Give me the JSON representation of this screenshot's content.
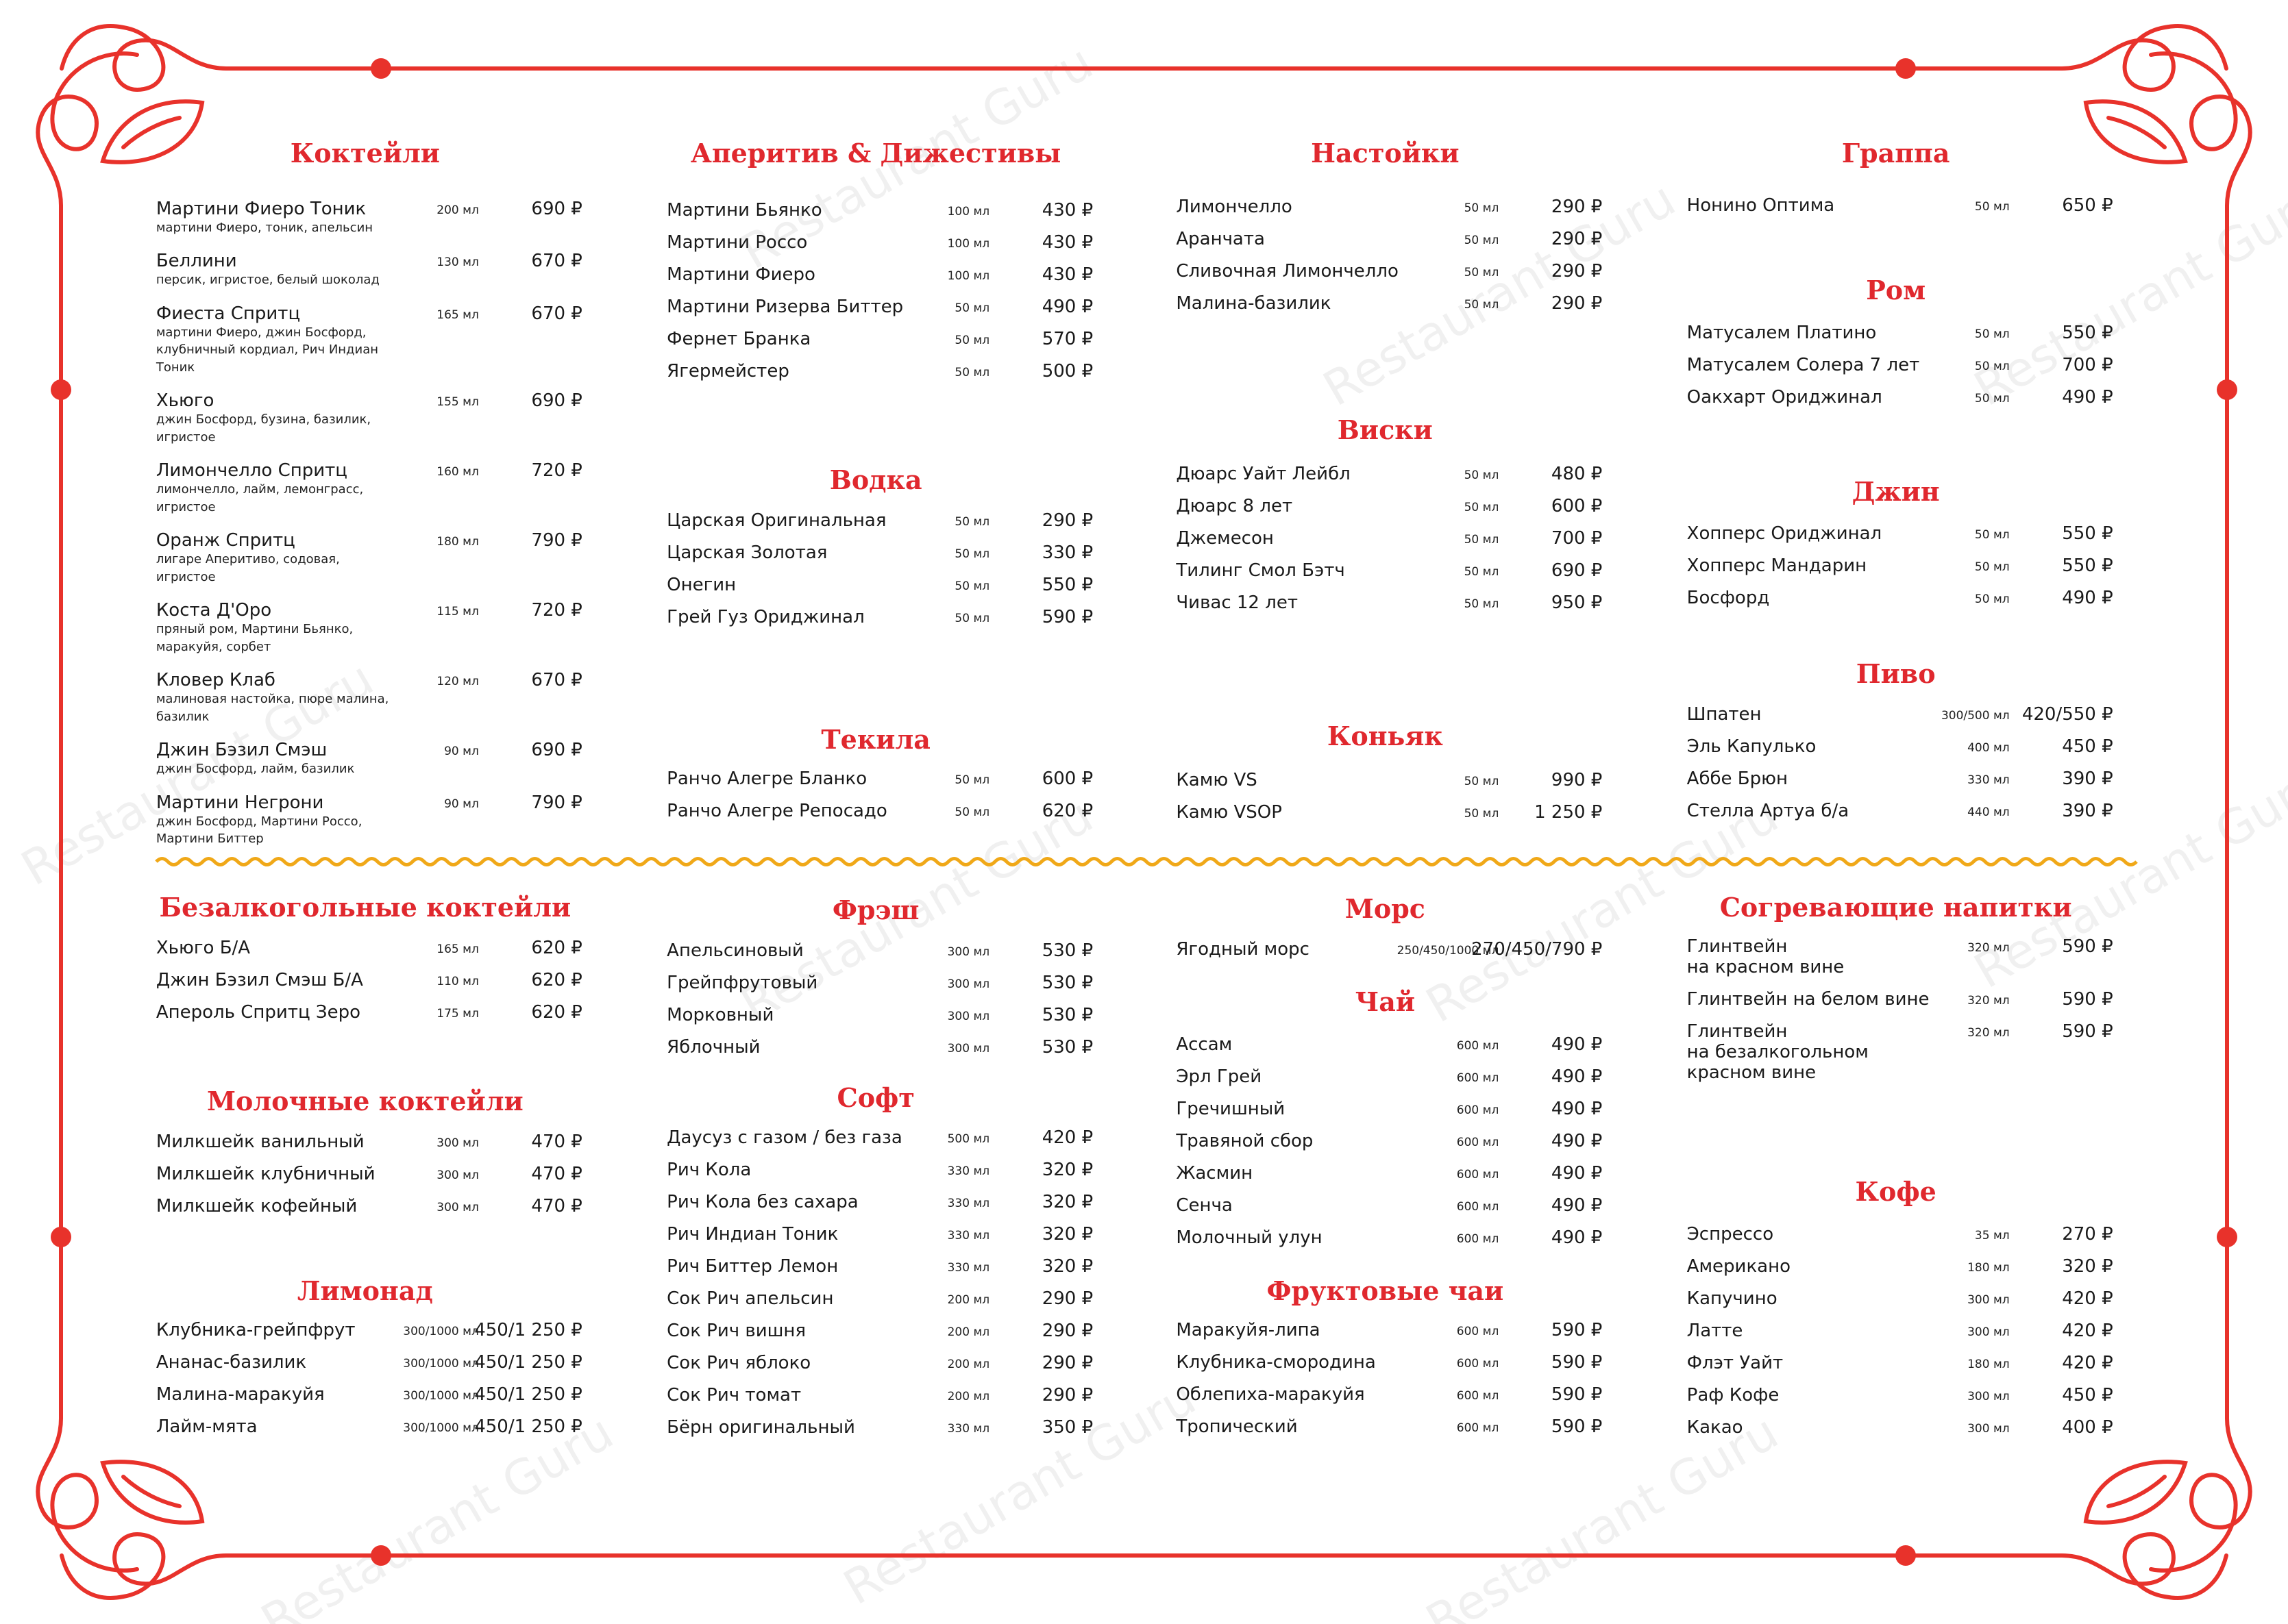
{
  "watermark": "Restaurant Guru",
  "sections": [
    {
      "title": "Коктейли",
      "items": [
        {
          "name": "Мартини Фиеро Тоник",
          "description": "мартини Фиеро, тоник, апельсин",
          "volume": "200 мл",
          "price": "690 ₽"
        },
        {
          "name": "Беллини",
          "description": "персик, игристое, белый шоколад",
          "volume": "130 мл",
          "price": "670 ₽"
        },
        {
          "name": "Фиеста Спритц",
          "description": "мартини Фиеро, джин Босфорд, клубничный кордиал, Рич Индиан Тоник",
          "volume": "165 мл",
          "price": "670 ₽"
        },
        {
          "name": "Хьюго",
          "description": "джин Босфорд, бузина, базилик, игристое",
          "volume": "155 мл",
          "price": "690 ₽"
        },
        {
          "name": "Лимончелло Спритц",
          "description": "лимончелло, лайм, лемонграсс, игристое",
          "volume": "160 мл",
          "price": "720 ₽"
        },
        {
          "name": "Оранж Спритц",
          "description": "лигаре Аперитиво, содовая, игристое",
          "volume": "180 мл",
          "price": "790 ₽"
        },
        {
          "name": "Коста Д'Оро",
          "description": "пряный ром, Мартини Бьянко, маракуйя, сорбет",
          "volume": "115 мл",
          "price": "720 ₽"
        },
        {
          "name": "Кловер Клаб",
          "description": "малиновая настойка, пюре малина, базилик",
          "volume": "120 мл",
          "price": "670 ₽"
        },
        {
          "name": "Джин Бэзил Смэш",
          "description": "джин Босфорд, лайм, базилик",
          "volume": "90 мл",
          "price": "690 ₽"
        },
        {
          "name": "Мартини Негрони",
          "description": "джин Босфорд, Мартини Россо, Мартини Биттер",
          "volume": "90 мл",
          "price": "790 ₽"
        }
      ]
    },
    {
      "title": "Аперитив & Дижестивы",
      "items": [
        {
          "name": "Мартини Бьянко",
          "volume": "100 мл",
          "price": "430 ₽"
        },
        {
          "name": "Мартини Россо",
          "volume": "100 мл",
          "price": "430 ₽"
        },
        {
          "name": "Мартини Фиеро",
          "volume": "100 мл",
          "price": "430 ₽"
        },
        {
          "name": "Мартини Ризерва Биттер",
          "volume": "50 мл",
          "price": "490 ₽"
        },
        {
          "name": "Фернет Бранка",
          "volume": "50 мл",
          "price": "570 ₽"
        },
        {
          "name": "Ягермейстер",
          "volume": "50 мл",
          "price": "500 ₽"
        }
      ]
    },
    {
      "title": "Водка",
      "items": [
        {
          "name": "Царская Оригинальная",
          "volume": "50 мл",
          "price": "290 ₽"
        },
        {
          "name": "Царская Золотая",
          "volume": "50 мл",
          "price": "330 ₽"
        },
        {
          "name": "Онегин",
          "volume": "50 мл",
          "price": "550 ₽"
        },
        {
          "name": "Грей Гуз Ориджинал",
          "volume": "50 мл",
          "price": "590 ₽"
        }
      ]
    },
    {
      "title": "Текила",
      "items": [
        {
          "name": "Ранчо Алегре Бланко",
          "volume": "50 мл",
          "price": "600 ₽"
        },
        {
          "name": "Ранчо Алегре Репосадо",
          "volume": "50 мл",
          "price": "620 ₽"
        }
      ]
    },
    {
      "title": "Настойки",
      "items": [
        {
          "name": "Лимончелло",
          "volume": "50 мл",
          "price": "290 ₽"
        },
        {
          "name": "Аранчата",
          "volume": "50 мл",
          "price": "290 ₽"
        },
        {
          "name": "Сливочная Лимончелло",
          "volume": "50 мл",
          "price": "290 ₽"
        },
        {
          "name": "Малина-базилик",
          "volume": "50 мл",
          "price": "290 ₽"
        }
      ]
    },
    {
      "title": "Виски",
      "items": [
        {
          "name": "Дюарс Уайт Лейбл",
          "volume": "50 мл",
          "price": "480 ₽"
        },
        {
          "name": "Дюарс 8 лет",
          "volume": "50 мл",
          "price": "600 ₽"
        },
        {
          "name": "Джемесон",
          "volume": "50 мл",
          "price": "700 ₽"
        },
        {
          "name": "Тилинг Смол Бэтч",
          "volume": "50 мл",
          "price": "690 ₽"
        },
        {
          "name": "Чивас 12 лет",
          "volume": "50 мл",
          "price": "950 ₽"
        }
      ]
    },
    {
      "title": "Коньяк",
      "items": [
        {
          "name": "Камю VS",
          "volume": "50 мл",
          "price": "990 ₽"
        },
        {
          "name": "Камю VSOP",
          "volume": "50 мл",
          "price": "1 250 ₽"
        }
      ]
    },
    {
      "title": "Граппа",
      "items": [
        {
          "name": "Нонино Оптима",
          "volume": "50 мл",
          "price": "650 ₽"
        }
      ]
    },
    {
      "title": "Ром",
      "items": [
        {
          "name": "Матусалем Платино",
          "volume": "50 мл",
          "price": "550 ₽"
        },
        {
          "name": "Матусалем Солера 7 лет",
          "volume": "50 мл",
          "price": "700 ₽"
        },
        {
          "name": "Оакхарт Ориджинал",
          "volume": "50 мл",
          "price": "490 ₽"
        }
      ]
    },
    {
      "title": "Джин",
      "items": [
        {
          "name": "Хопперс Ориджинал",
          "volume": "50 мл",
          "price": "550 ₽"
        },
        {
          "name": "Хопперс Мандарин",
          "volume": "50 мл",
          "price": "550 ₽"
        },
        {
          "name": "Босфорд",
          "volume": "50 мл",
          "price": "490 ₽"
        }
      ]
    },
    {
      "title": "Пиво",
      "items": [
        {
          "name": "Шпатен",
          "volume": "300/500 мл",
          "price": "420/550 ₽"
        },
        {
          "name": "Эль Капулько",
          "volume": "400 мл",
          "price": "450 ₽"
        },
        {
          "name": "Аббе Брюн",
          "volume": "330 мл",
          "price": "390 ₽"
        },
        {
          "name": "Стелла Артуа б/а",
          "volume": "440 мл",
          "price": "390 ₽"
        }
      ]
    },
    {
      "title": "Безалкогольные коктейли",
      "items": [
        {
          "name": "Хьюго Б/А",
          "volume": "165 мл",
          "price": "620 ₽"
        },
        {
          "name": "Джин Бэзил Смэш Б/А",
          "volume": "110 мл",
          "price": "620 ₽"
        },
        {
          "name": "Апероль Спритц Зеро",
          "volume": "175 мл",
          "price": "620 ₽"
        }
      ]
    },
    {
      "title": "Молочные коктейли",
      "items": [
        {
          "name": "Милкшейк ванильный",
          "volume": "300 мл",
          "price": "470 ₽"
        },
        {
          "name": "Милкшейк клубничный",
          "volume": "300 мл",
          "price": "470 ₽"
        },
        {
          "name": "Милкшейк кофейный",
          "volume": "300 мл",
          "price": "470 ₽"
        }
      ]
    },
    {
      "title": "Лимонад",
      "items": [
        {
          "name": "Клубника-грейпфрут",
          "volume": "300/1000 мл",
          "price": "450/1 250 ₽"
        },
        {
          "name": "Ананас-базилик",
          "volume": "300/1000 мл",
          "price": "450/1 250 ₽"
        },
        {
          "name": "Малина-маракуйя",
          "volume": "300/1000 мл",
          "price": "450/1 250 ₽"
        },
        {
          "name": "Лайм-мята",
          "volume": "300/1000 мл",
          "price": "450/1 250 ₽"
        }
      ]
    },
    {
      "title": "Фрэш",
      "items": [
        {
          "name": "Апельсиновый",
          "volume": "300 мл",
          "price": "530 ₽"
        },
        {
          "name": "Грейпфрутовый",
          "volume": "300 мл",
          "price": "530 ₽"
        },
        {
          "name": "Морковный",
          "volume": "300 мл",
          "price": "530 ₽"
        },
        {
          "name": "Яблочный",
          "volume": "300 мл",
          "price": "530 ₽"
        }
      ]
    },
    {
      "title": "Софт",
      "items": [
        {
          "name": "Даусуз с газом / без газа",
          "volume": "500 мл",
          "price": "420 ₽"
        },
        {
          "name": "Рич Кола",
          "volume": "330 мл",
          "price": "320 ₽"
        },
        {
          "name": "Рич Кола без сахара",
          "volume": "330 мл",
          "price": "320 ₽"
        },
        {
          "name": "Рич Индиан Тоник",
          "volume": "330 мл",
          "price": "320 ₽"
        },
        {
          "name": "Рич Биттер Лемон",
          "volume": "330 мл",
          "price": "320 ₽"
        },
        {
          "name": "Сок Рич апельсин",
          "volume": "200 мл",
          "price": "290 ₽"
        },
        {
          "name": "Сок Рич вишня",
          "volume": "200 мл",
          "price": "290 ₽"
        },
        {
          "name": "Сок Рич яблоко",
          "volume": "200 мл",
          "price": "290 ₽"
        },
        {
          "name": "Сок Рич томат",
          "volume": "200 мл",
          "price": "290 ₽"
        },
        {
          "name": "Бёрн оригинальный",
          "volume": "330 мл",
          "price": "350 ₽"
        }
      ]
    },
    {
      "title": "Морс",
      "items": [
        {
          "name": "Ягодный морс",
          "volume": "250/450/1000 мл",
          "price": "270/450/790 ₽"
        }
      ]
    },
    {
      "title": "Чай",
      "items": [
        {
          "name": "Ассам",
          "volume": "600 мл",
          "price": "490 ₽"
        },
        {
          "name": "Эрл Грей",
          "volume": "600 мл",
          "price": "490 ₽"
        },
        {
          "name": "Гречишный",
          "volume": "600 мл",
          "price": "490 ₽"
        },
        {
          "name": "Травяной сбор",
          "volume": "600 мл",
          "price": "490 ₽"
        },
        {
          "name": "Жасмин",
          "volume": "600 мл",
          "price": "490 ₽"
        },
        {
          "name": "Сенча",
          "volume": "600 мл",
          "price": "490 ₽"
        },
        {
          "name": "Молочный улун",
          "volume": "600 мл",
          "price": "490 ₽"
        }
      ]
    },
    {
      "title": "Фруктовые чаи",
      "items": [
        {
          "name": "Маракуйя-липа",
          "volume": "600 мл",
          "price": "590 ₽"
        },
        {
          "name": "Клубника-смородина",
          "volume": "600 мл",
          "price": "590 ₽"
        },
        {
          "name": "Облепиха-маракуйя",
          "volume": "600 мл",
          "price": "590 ₽"
        },
        {
          "name": "Тропический",
          "volume": "600 мл",
          "price": "590 ₽"
        }
      ]
    },
    {
      "title": "Согревающие напитки",
      "items": [
        {
          "name": "Глинтвейн\nна красном вине",
          "volume": "320 мл",
          "price": "590 ₽"
        },
        {
          "name": "Глинтвейн на белом вине",
          "volume": "320 мл",
          "price": "590 ₽"
        },
        {
          "name": "Глинтвейн\nна безалкогольном\nкрасном вине",
          "volume": "320 мл",
          "price": "590 ₽"
        }
      ]
    },
    {
      "title": "Кофе",
      "items": [
        {
          "name": "Эспрессо",
          "volume": "35 мл",
          "price": "270 ₽"
        },
        {
          "name": "Американо",
          "volume": "180 мл",
          "price": "320 ₽"
        },
        {
          "name": "Капучино",
          "volume": "300 мл",
          "price": "420 ₽"
        },
        {
          "name": "Латте",
          "volume": "300 мл",
          "price": "420 ₽"
        },
        {
          "name": "Флэт Уайт",
          "volume": "180 мл",
          "price": "420 ₽"
        },
        {
          "name": "Раф Кофе",
          "volume": "300 мл",
          "price": "450 ₽"
        },
        {
          "name": "Какао",
          "volume": "300 мл",
          "price": "400 ₽"
        }
      ]
    }
  ]
}
